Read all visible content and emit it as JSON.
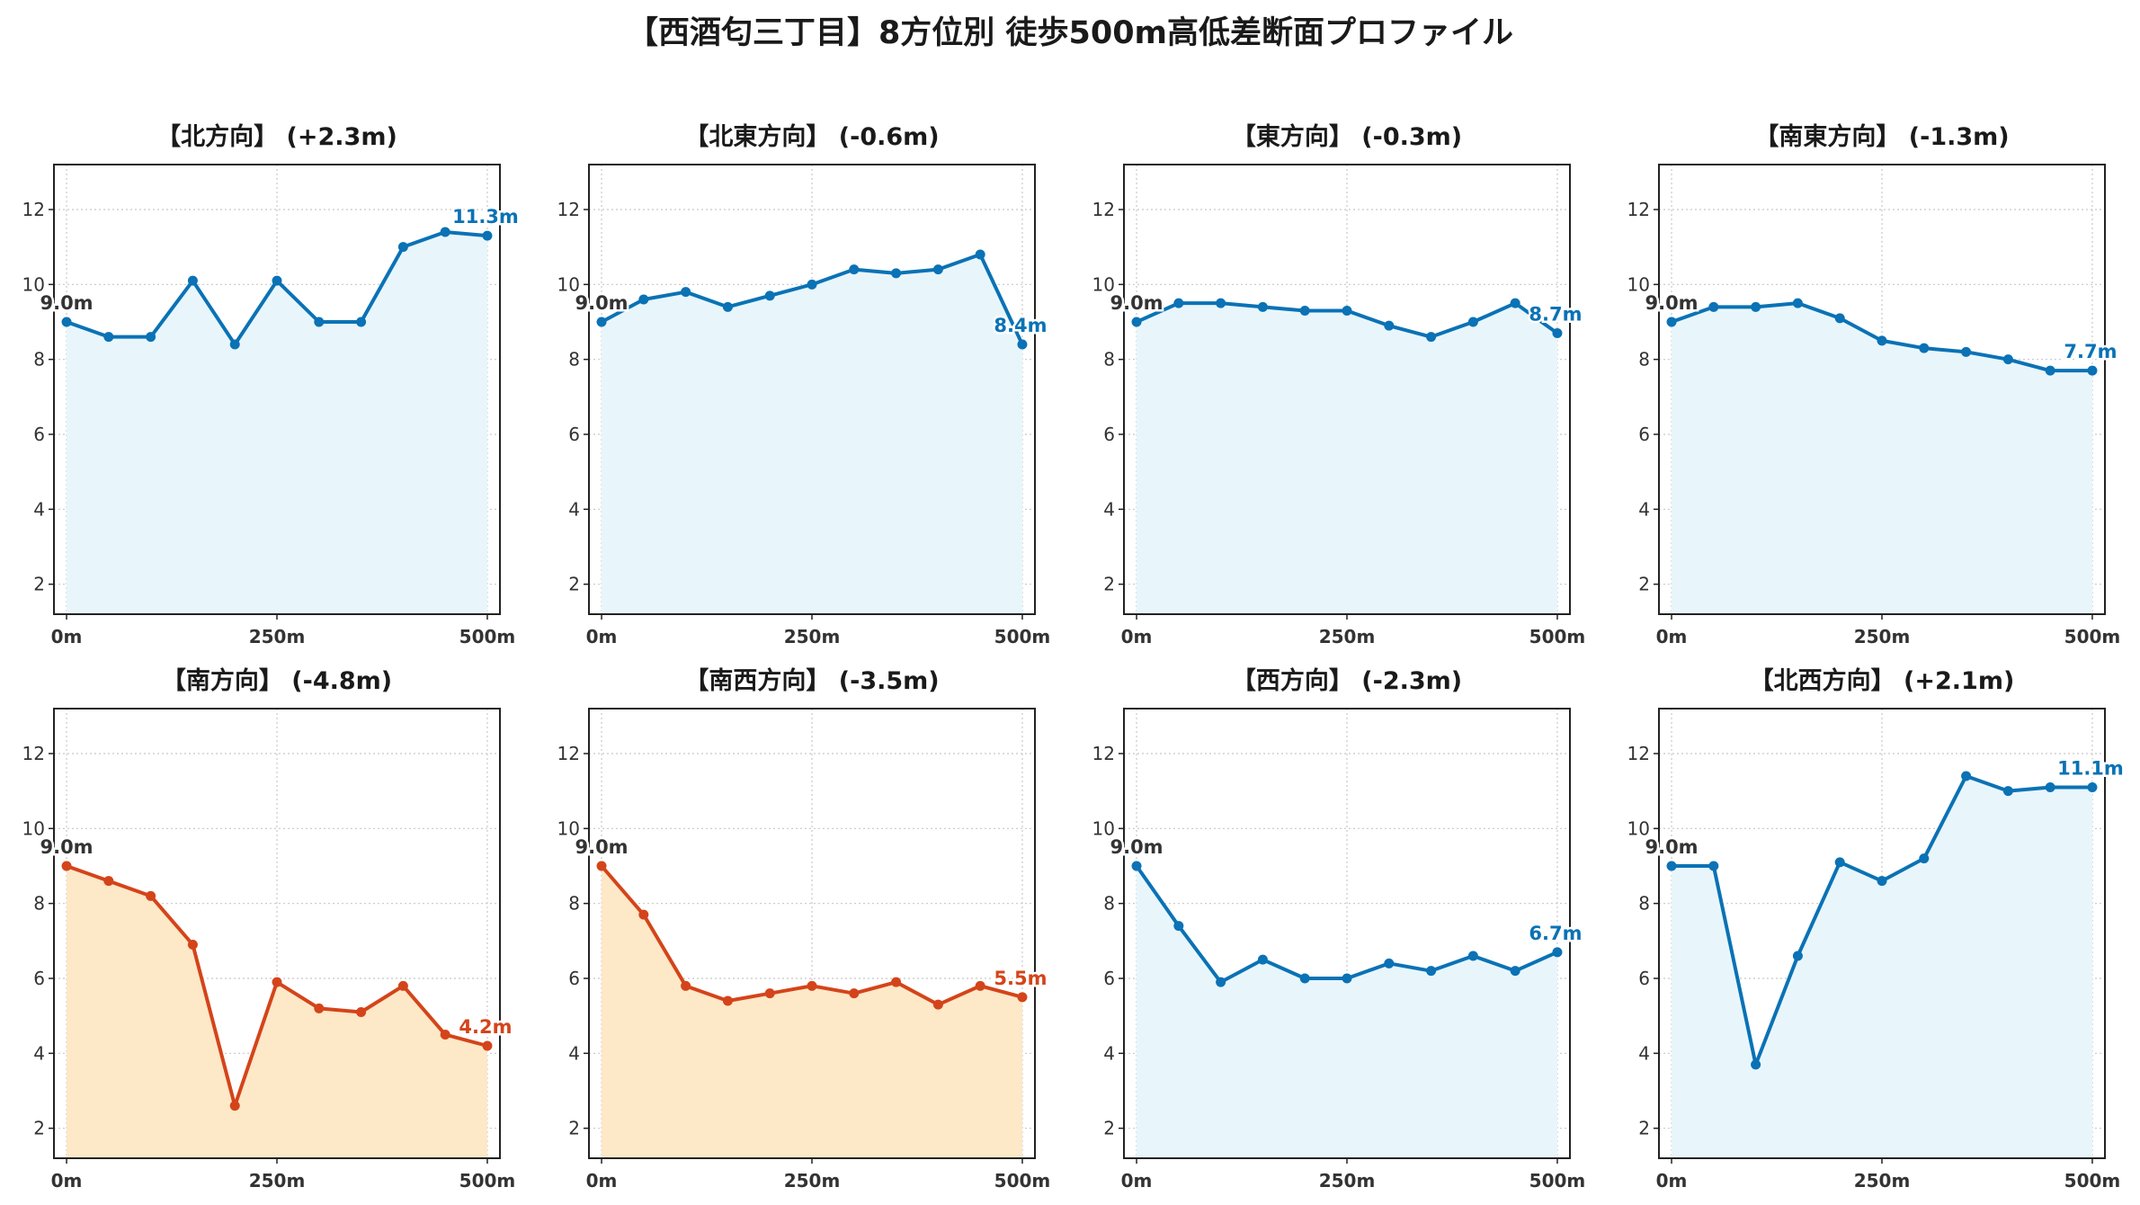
{
  "figure_title": "【西酒匂三丁目】8方位別 徒歩500m高低差断面プロファイル",
  "colors": {
    "rise_line": "#0a72b5",
    "rise_fill": "#e8f6fc",
    "fall_line": "#d4441a",
    "fall_fill": "#fde8c7",
    "start_label": "#333333",
    "grid": "#c8c8c8",
    "axis": "#222222"
  },
  "chart_data": [
    {
      "type": "area",
      "title": "【北方向】 (+2.3m)",
      "style": "blue",
      "x": [
        0,
        50,
        100,
        150,
        200,
        250,
        300,
        350,
        400,
        450,
        500
      ],
      "values": [
        9.0,
        8.6,
        8.6,
        10.1,
        8.4,
        10.1,
        9.0,
        9.0,
        11.0,
        11.4,
        11.3
      ],
      "start_label": "9.0m",
      "end_label": "11.3m",
      "xticks": [
        "0m",
        "250m",
        "500m"
      ],
      "yticks": [
        2,
        4,
        6,
        8,
        10,
        12
      ],
      "ylim": [
        1.2,
        13.2
      ],
      "xlim": [
        -15,
        515
      ],
      "grid": true
    },
    {
      "type": "area",
      "title": "【北東方向】 (-0.6m)",
      "style": "blue",
      "x": [
        0,
        50,
        100,
        150,
        200,
        250,
        300,
        350,
        400,
        450,
        500
      ],
      "values": [
        9.0,
        9.6,
        9.8,
        9.4,
        9.7,
        10.0,
        10.4,
        10.3,
        10.4,
        10.8,
        8.4
      ],
      "start_label": "9.0m",
      "end_label": "8.4m",
      "xticks": [
        "0m",
        "250m",
        "500m"
      ],
      "yticks": [
        2,
        4,
        6,
        8,
        10,
        12
      ],
      "ylim": [
        1.2,
        13.2
      ],
      "xlim": [
        -15,
        515
      ],
      "grid": true
    },
    {
      "type": "area",
      "title": "【東方向】 (-0.3m)",
      "style": "blue",
      "x": [
        0,
        50,
        100,
        150,
        200,
        250,
        300,
        350,
        400,
        450,
        500
      ],
      "values": [
        9.0,
        9.5,
        9.5,
        9.4,
        9.3,
        9.3,
        8.9,
        8.6,
        9.0,
        9.5,
        8.7
      ],
      "start_label": "9.0m",
      "end_label": "8.7m",
      "xticks": [
        "0m",
        "250m",
        "500m"
      ],
      "yticks": [
        2,
        4,
        6,
        8,
        10,
        12
      ],
      "ylim": [
        1.2,
        13.2
      ],
      "xlim": [
        -15,
        515
      ],
      "grid": true
    },
    {
      "type": "area",
      "title": "【南東方向】 (-1.3m)",
      "style": "blue",
      "x": [
        0,
        50,
        100,
        150,
        200,
        250,
        300,
        350,
        400,
        450,
        500
      ],
      "values": [
        9.0,
        9.4,
        9.4,
        9.5,
        9.1,
        8.5,
        8.3,
        8.2,
        8.0,
        7.7,
        7.7
      ],
      "start_label": "9.0m",
      "end_label": "7.7m",
      "xticks": [
        "0m",
        "250m",
        "500m"
      ],
      "yticks": [
        2,
        4,
        6,
        8,
        10,
        12
      ],
      "ylim": [
        1.2,
        13.2
      ],
      "xlim": [
        -15,
        515
      ],
      "grid": true
    },
    {
      "type": "area",
      "title": "【南方向】 (-4.8m)",
      "style": "orange",
      "x": [
        0,
        50,
        100,
        150,
        200,
        250,
        300,
        350,
        400,
        450,
        500
      ],
      "values": [
        9.0,
        8.6,
        8.2,
        6.9,
        2.6,
        5.9,
        5.2,
        5.1,
        5.8,
        4.5,
        4.2
      ],
      "start_label": "9.0m",
      "end_label": "4.2m",
      "xticks": [
        "0m",
        "250m",
        "500m"
      ],
      "yticks": [
        2,
        4,
        6,
        8,
        10,
        12
      ],
      "ylim": [
        1.2,
        13.2
      ],
      "xlim": [
        -15,
        515
      ],
      "grid": true
    },
    {
      "type": "area",
      "title": "【南西方向】 (-3.5m)",
      "style": "orange",
      "x": [
        0,
        50,
        100,
        150,
        200,
        250,
        300,
        350,
        400,
        450,
        500
      ],
      "values": [
        9.0,
        7.7,
        5.8,
        5.4,
        5.6,
        5.8,
        5.6,
        5.9,
        5.3,
        5.8,
        5.5
      ],
      "start_label": "9.0m",
      "end_label": "5.5m",
      "xticks": [
        "0m",
        "250m",
        "500m"
      ],
      "yticks": [
        2,
        4,
        6,
        8,
        10,
        12
      ],
      "ylim": [
        1.2,
        13.2
      ],
      "xlim": [
        -15,
        515
      ],
      "grid": true
    },
    {
      "type": "area",
      "title": "【西方向】 (-2.3m)",
      "style": "blue",
      "x": [
        0,
        50,
        100,
        150,
        200,
        250,
        300,
        350,
        400,
        450,
        500
      ],
      "values": [
        9.0,
        7.4,
        5.9,
        6.5,
        6.0,
        6.0,
        6.4,
        6.2,
        6.6,
        6.2,
        6.7
      ],
      "start_label": "9.0m",
      "end_label": "6.7m",
      "xticks": [
        "0m",
        "250m",
        "500m"
      ],
      "yticks": [
        2,
        4,
        6,
        8,
        10,
        12
      ],
      "ylim": [
        1.2,
        13.2
      ],
      "xlim": [
        -15,
        515
      ],
      "grid": true
    },
    {
      "type": "area",
      "title": "【北西方向】 (+2.1m)",
      "style": "blue",
      "x": [
        0,
        50,
        100,
        150,
        200,
        250,
        300,
        350,
        400,
        450,
        500
      ],
      "values": [
        9.0,
        9.0,
        3.7,
        6.6,
        9.1,
        8.6,
        9.2,
        11.4,
        11.0,
        11.1,
        11.1
      ],
      "start_label": "9.0m",
      "end_label": "11.1m",
      "xticks": [
        "0m",
        "250m",
        "500m"
      ],
      "yticks": [
        2,
        4,
        6,
        8,
        10,
        12
      ],
      "ylim": [
        1.2,
        13.2
      ],
      "xlim": [
        -15,
        515
      ],
      "grid": true
    }
  ]
}
